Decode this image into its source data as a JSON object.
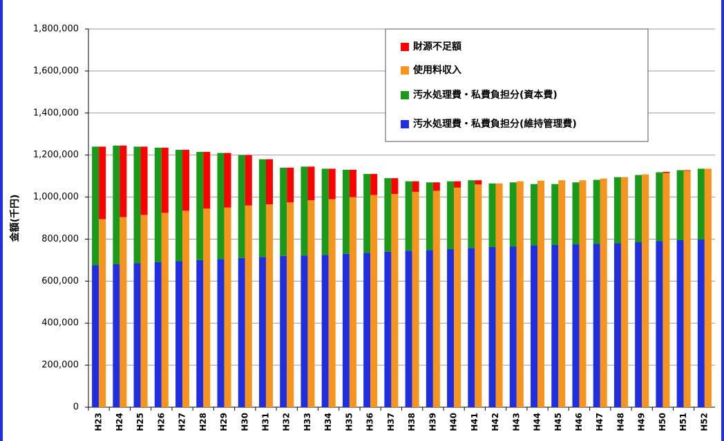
{
  "chart_data": {
    "type": "bar",
    "y_label": "金額(千円)",
    "categories": [
      "H23",
      "H24",
      "H25",
      "H26",
      "H27",
      "H28",
      "H29",
      "H30",
      "H31",
      "H32",
      "H33",
      "H34",
      "H35",
      "H36",
      "H37",
      "H38",
      "H39",
      "H40",
      "H41",
      "H42",
      "H43",
      "H44",
      "H45",
      "H46",
      "H47",
      "H48",
      "H49",
      "H50",
      "H51",
      "H52"
    ],
    "series": [
      {
        "name": "財源不足額",
        "color": "#ff0000",
        "stack": "right",
        "values": [
          345000,
          340000,
          325000,
          310000,
          290000,
          270000,
          260000,
          240000,
          215000,
          165000,
          160000,
          145000,
          130000,
          100000,
          75000,
          50000,
          40000,
          30000,
          20000,
          0,
          0,
          0,
          0,
          0,
          0,
          0,
          0,
          5000,
          3000,
          0
        ]
      },
      {
        "name": "使用料収入",
        "color": "#f7941d",
        "stack": "right",
        "values": [
          895000,
          905000,
          915000,
          925000,
          935000,
          945000,
          950000,
          960000,
          965000,
          975000,
          985000,
          990000,
          1000000,
          1010000,
          1015000,
          1025000,
          1030000,
          1045000,
          1060000,
          1065000,
          1075000,
          1078000,
          1080000,
          1080000,
          1088000,
          1095000,
          1108000,
          1115000,
          1125000,
          1135000
        ]
      },
      {
        "name": "汚水処理費・私費負担分(資本費)",
        "color": "#1a9a1a",
        "stack": "left",
        "values": [
          565000,
          565000,
          555000,
          545000,
          530000,
          515000,
          505000,
          490000,
          465000,
          420000,
          423000,
          410000,
          400000,
          375000,
          350000,
          330000,
          322000,
          323000,
          322000,
          303000,
          305000,
          292000,
          290000,
          295000,
          304000,
          315000,
          320000,
          328000,
          333000,
          337000
        ]
      },
      {
        "name": "汚水処理費・私費負担分(維持管理費)",
        "color": "#1f2fe0",
        "stack": "left",
        "values": [
          675000,
          680000,
          685000,
          690000,
          695000,
          700000,
          705000,
          710000,
          715000,
          720000,
          722000,
          725000,
          730000,
          735000,
          740000,
          745000,
          748000,
          752000,
          758000,
          762000,
          765000,
          770000,
          772000,
          775000,
          778000,
          780000,
          785000,
          790000,
          795000,
          798000
        ]
      }
    ],
    "ylim": [
      0,
      1800000
    ],
    "yticks": [
      0,
      {
        "value": 200000,
        "label": "200,000"
      },
      {
        "value": 400000,
        "label": "400,000"
      },
      {
        "value": 600000,
        "label": "600,000"
      },
      {
        "value": 800000,
        "label": "800,000"
      },
      {
        "value": 1000000,
        "label": "1,000,000"
      },
      {
        "value": 1200000,
        "label": "1,200,000"
      },
      {
        "value": 1400000,
        "label": "1,400,000"
      },
      {
        "value": 1600000,
        "label": "1,600,000"
      },
      {
        "value": 1800000,
        "label": "1,800,000"
      }
    ],
    "grid": true,
    "legend": "top-right"
  }
}
